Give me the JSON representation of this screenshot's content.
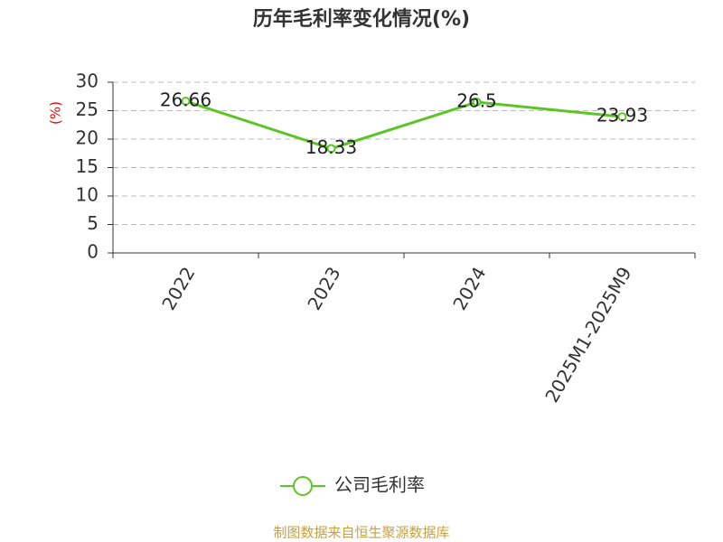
{
  "chart_data": {
    "type": "line",
    "title": "历年毛利率变化情况(%)",
    "y_label": "(%)",
    "categories": [
      "2022",
      "2023",
      "2024",
      "2025M1-2025M9"
    ],
    "series": [
      {
        "name": "公司毛利率",
        "color": "#5cc425",
        "values": [
          26.66,
          18.33,
          26.5,
          23.93
        ]
      }
    ],
    "ylim": [
      0,
      30
    ],
    "yticks": [
      0,
      5,
      10,
      15,
      20,
      25,
      30
    ],
    "grid": true,
    "source": "制图数据来自恒生聚源数据库"
  }
}
